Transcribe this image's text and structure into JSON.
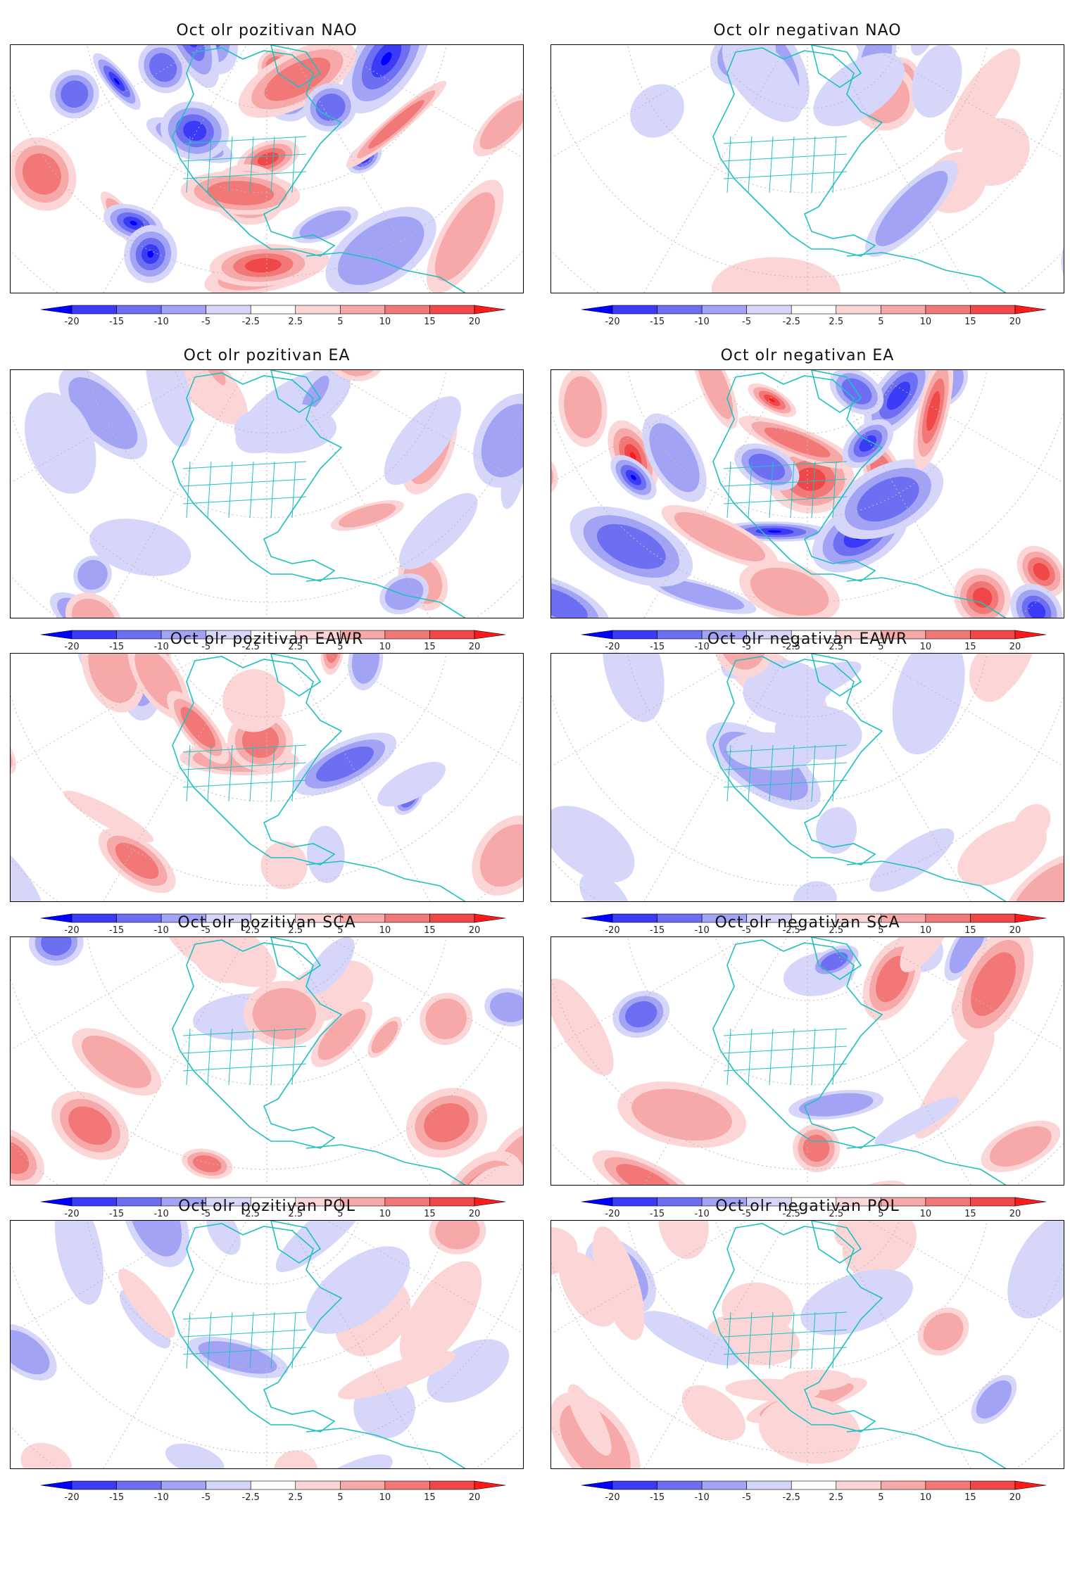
{
  "panels": [
    {
      "title": "Oct olr pozitivan NAO",
      "pattern": "strong"
    },
    {
      "title": "Oct olr negativan NAO",
      "pattern": "weak-blue"
    },
    {
      "title": "Oct olr pozitivan EA",
      "pattern": "weak-blue"
    },
    {
      "title": "Oct olr negativan EA",
      "pattern": "strong-blue-red"
    },
    {
      "title": "Oct olr pozitivan EAWR",
      "pattern": "red"
    },
    {
      "title": "Oct olr negativan EAWR",
      "pattern": "weak-mixed"
    },
    {
      "title": "Oct olr pozitivan SCA",
      "pattern": "red"
    },
    {
      "title": "Oct olr negativan SCA",
      "pattern": "blue-red"
    },
    {
      "title": "Oct olr pozitivan POL",
      "pattern": "weak-mixed"
    },
    {
      "title": "Oct olr negativan POL",
      "pattern": "red-weak"
    }
  ],
  "colorbar": {
    "tick_labels": [
      "-20",
      "-15",
      "-10",
      "-5",
      "-2.5",
      "2.5",
      "5",
      "10",
      "15",
      "20"
    ],
    "colors": [
      "#0000ff",
      "#3b3bf5",
      "#6e6ef2",
      "#a3a3f5",
      "#d6d6fa",
      "#ffffff",
      "#fcd6d6",
      "#f7a8a8",
      "#f27878",
      "#f04848",
      "#ff1a1a"
    ]
  },
  "map_style": {
    "land_outline_color": "#20c0c0",
    "grid_color": "#bbbbbb"
  }
}
